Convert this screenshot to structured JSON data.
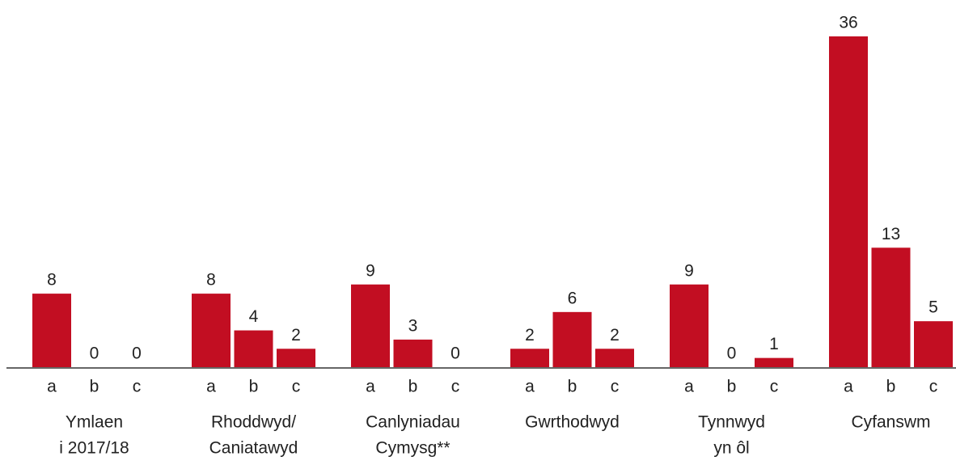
{
  "chart_data": {
    "type": "bar",
    "categories": [
      [
        "Ymlaen",
        "i 2017/18"
      ],
      [
        "Rhoddwyd/",
        "Caniatawyd"
      ],
      [
        "Canlyniadau",
        "Cymysg**"
      ],
      [
        "Gwrthodwyd"
      ],
      [
        "Tynnwyd",
        "yn ôl"
      ],
      [
        "Cyfanswm"
      ]
    ],
    "subcategories": [
      "a",
      "b",
      "c"
    ],
    "values": [
      [
        8,
        0,
        0
      ],
      [
        8,
        4,
        2
      ],
      [
        9,
        3,
        0
      ],
      [
        2,
        6,
        2
      ],
      [
        9,
        0,
        1
      ],
      [
        36,
        13,
        5
      ]
    ],
    "color": "#c20e22"
  }
}
